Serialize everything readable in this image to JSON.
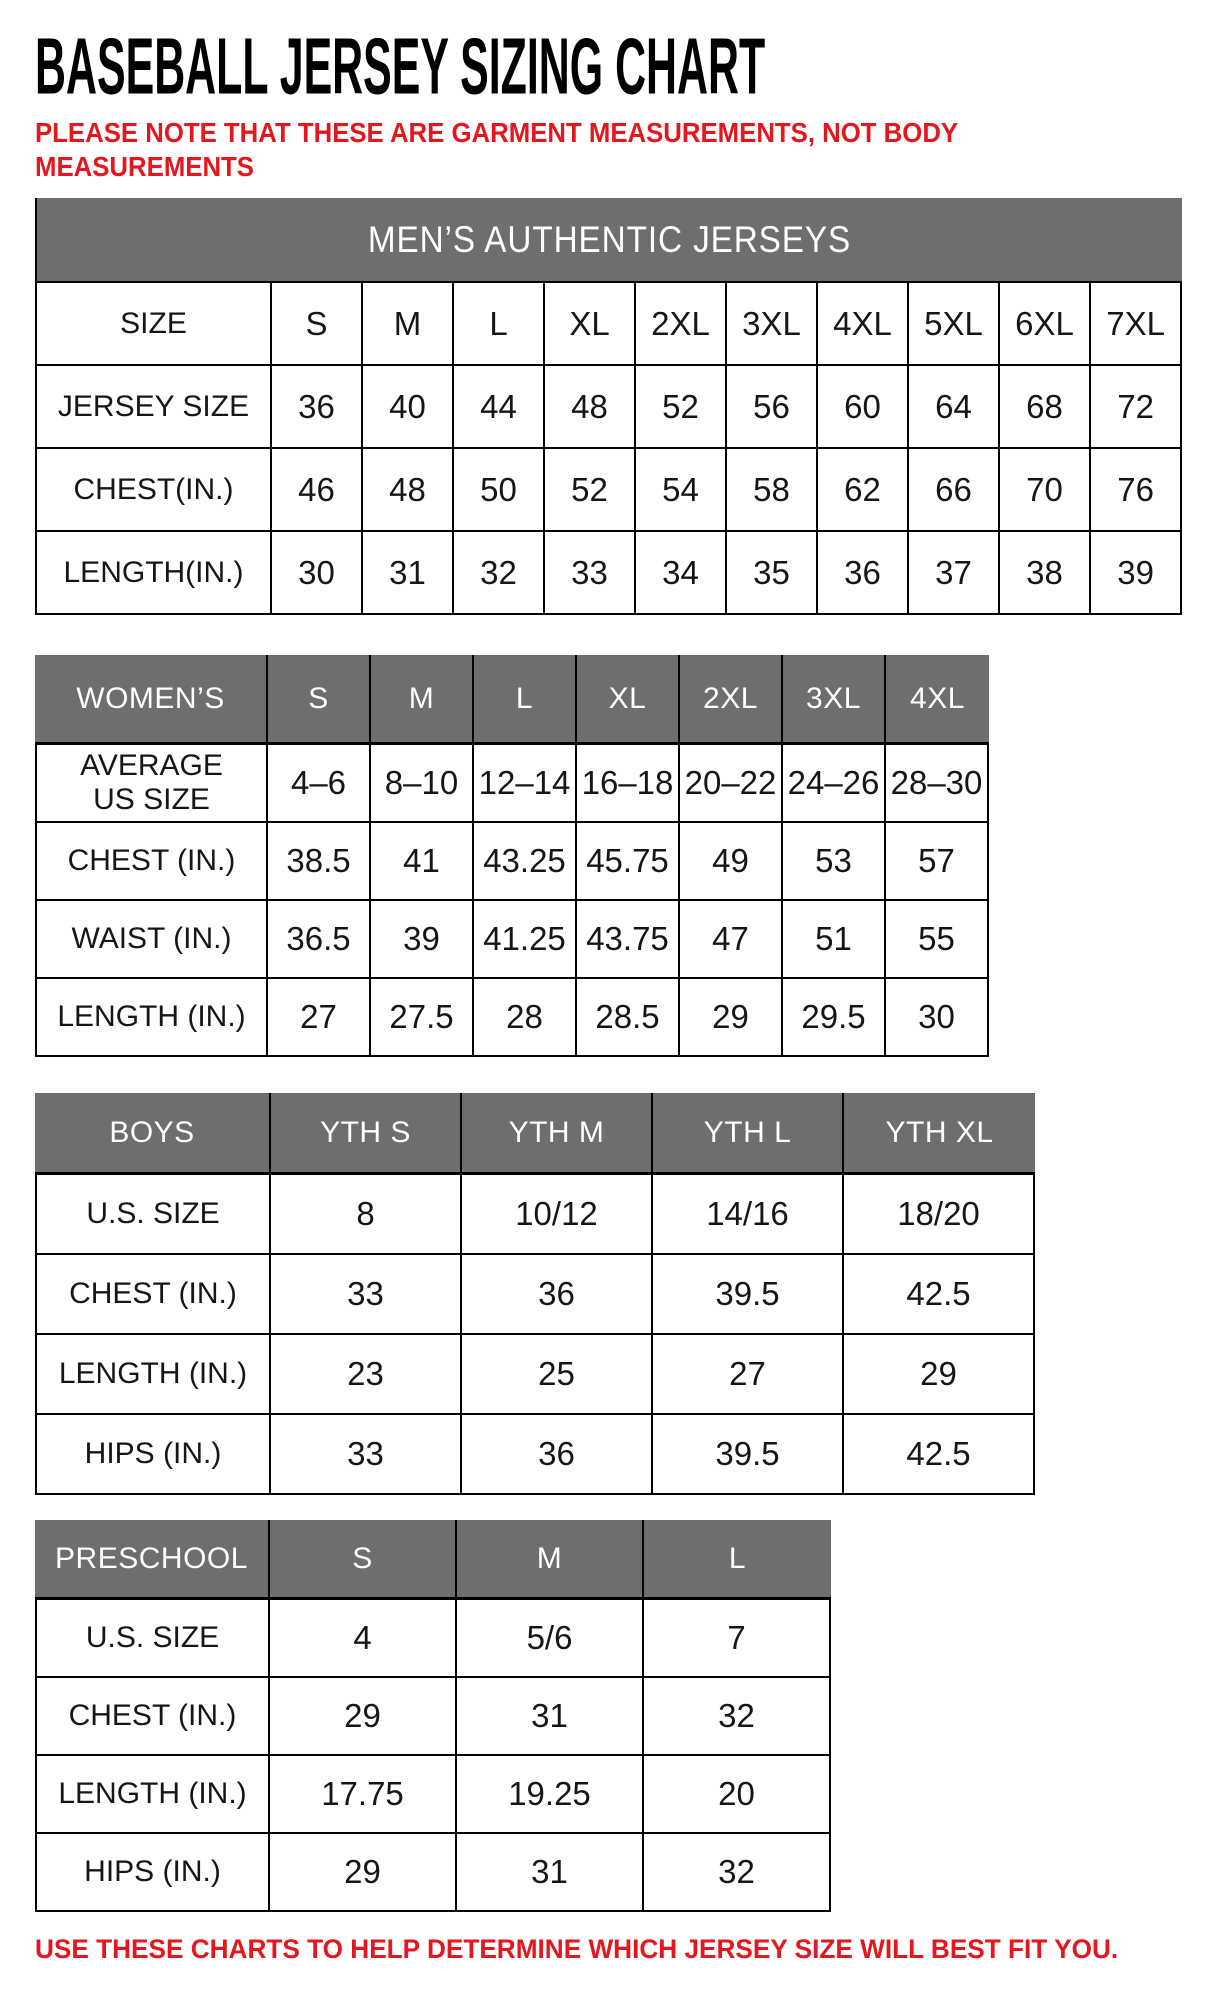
{
  "page": {
    "title": "BASEBALL JERSEY SIZING CHART",
    "note_lines": [
      "PLEASE NOTE THAT THESE ARE GARMENT MEASUREMENTS, NOT BODY",
      "MEASUREMENTS"
    ],
    "footer": "USE THESE CHARTS TO HELP DETERMINE WHICH JERSEY SIZE WILL BEST FIT YOU."
  },
  "colors": {
    "accent_red": "#e5171e",
    "header_gray": "#6e6e6e",
    "border_black": "#000000",
    "text_black": "#161616"
  },
  "tables": [
    {
      "id": "mens",
      "merged_title": "MEN’S AUTHENTIC JERSEYS",
      "rows": [
        [
          "SIZE",
          "S",
          "M",
          "L",
          "XL",
          "2XL",
          "3XL",
          "4XL",
          "5XL",
          "6XL",
          "7XL"
        ],
        [
          "JERSEY SIZE",
          "36",
          "40",
          "44",
          "48",
          "52",
          "56",
          "60",
          "64",
          "68",
          "72"
        ],
        [
          "CHEST(IN.)",
          "46",
          "48",
          "50",
          "52",
          "54",
          "58",
          "62",
          "66",
          "70",
          "76"
        ],
        [
          "LENGTH(IN.)",
          "30",
          "31",
          "32",
          "33",
          "34",
          "35",
          "36",
          "37",
          "38",
          "39"
        ]
      ]
    },
    {
      "id": "womens",
      "header_row": [
        "WOMEN’S",
        "S",
        "M",
        "L",
        "XL",
        "2XL",
        "3XL",
        "4XL"
      ],
      "rows": [
        [
          "AVERAGE\nUS SIZE",
          "4–6",
          "8–10",
          "12–14",
          "16–18",
          "20–22",
          "24–26",
          "28–30"
        ],
        [
          "CHEST (IN.)",
          "38.5",
          "41",
          "43.25",
          "45.75",
          "49",
          "53",
          "57"
        ],
        [
          "WAIST (IN.)",
          "36.5",
          "39",
          "41.25",
          "43.75",
          "47",
          "51",
          "55"
        ],
        [
          "LENGTH (IN.)",
          "27",
          "27.5",
          "28",
          "28.5",
          "29",
          "29.5",
          "30"
        ]
      ]
    },
    {
      "id": "boys",
      "header_row": [
        "BOYS",
        "YTH S",
        "YTH M",
        "YTH L",
        "YTH XL"
      ],
      "rows": [
        [
          "U.S. SIZE",
          "8",
          "10/12",
          "14/16",
          "18/20"
        ],
        [
          "CHEST (IN.)",
          "33",
          "36",
          "39.5",
          "42.5"
        ],
        [
          "LENGTH (IN.)",
          "23",
          "25",
          "27",
          "29"
        ],
        [
          "HIPS (IN.)",
          "33",
          "36",
          "39.5",
          "42.5"
        ]
      ]
    },
    {
      "id": "preschool",
      "header_row": [
        "PRESCHOOL",
        "S",
        "M",
        "L"
      ],
      "rows": [
        [
          "U.S. SIZE",
          "4",
          "5/6",
          "7"
        ],
        [
          "CHEST (IN.)",
          "29",
          "31",
          "32"
        ],
        [
          "LENGTH (IN.)",
          "17.75",
          "19.25",
          "20"
        ],
        [
          "HIPS (IN.)",
          "29",
          "31",
          "32"
        ]
      ]
    }
  ]
}
